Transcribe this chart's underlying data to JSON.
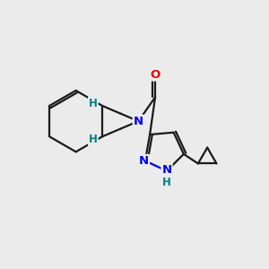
{
  "bg_color": "#ebebeb",
  "bond_color": "#1a1a1a",
  "N_color": "#0000ee",
  "O_color": "#ee0000",
  "H_color": "#008080",
  "line_width": 1.6,
  "figsize": [
    3.0,
    3.0
  ],
  "dpi": 100,
  "xlim": [
    0,
    10
  ],
  "ylim": [
    0,
    10
  ]
}
